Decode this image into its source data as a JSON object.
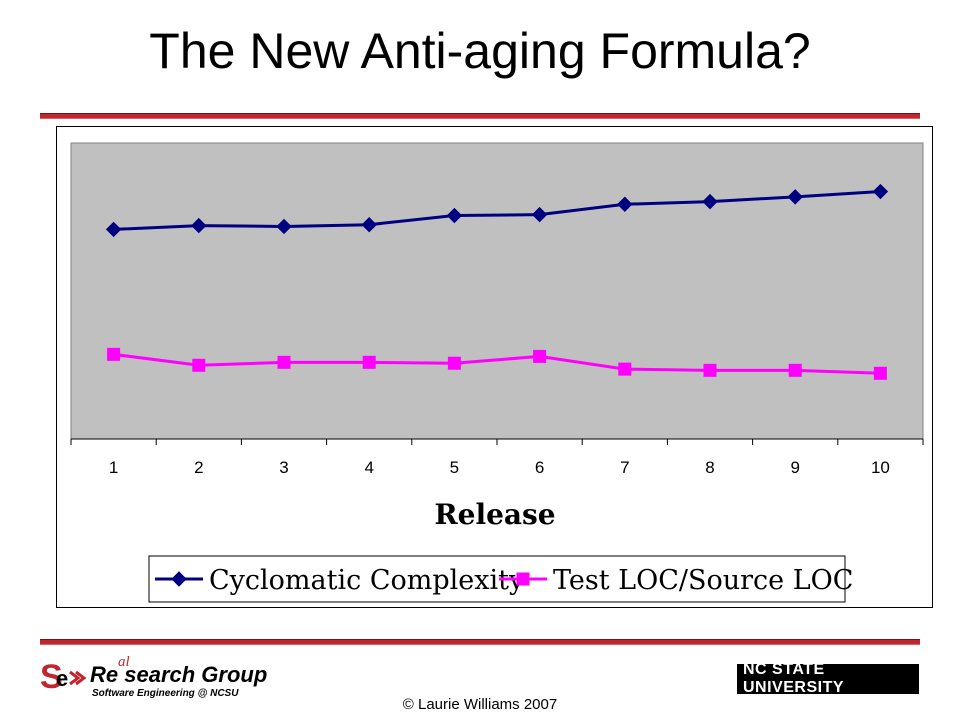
{
  "slide": {
    "title": "The New Anti-aging Formula?",
    "copyright": "© Laurie Williams 2007"
  },
  "logos": {
    "left_group": "Re search Group",
    "left_group_letters": "al",
    "left_sub": "Software Engineering @ NCSU",
    "right": "NC STATE UNIVERSITY"
  },
  "colors": {
    "rule": "#c0262d",
    "plot_bg": "#c0c0c0",
    "series_1": "#000080",
    "series_2": "#ff00ff"
  },
  "chart_data": {
    "type": "line",
    "title": "",
    "xlabel": "Release",
    "ylabel": "",
    "x": [
      1,
      2,
      3,
      4,
      5,
      6,
      7,
      8,
      9,
      10
    ],
    "ylim": [
      0,
      100
    ],
    "grid": false,
    "legend": "bottom",
    "series": [
      {
        "name": "Cyclomatic Complexity",
        "marker": "diamond",
        "values": [
          70.8,
          72.1,
          71.8,
          72.4,
          75.5,
          75.8,
          79.3,
          80.2,
          81.8,
          83.6
        ]
      },
      {
        "name": "Test LOC/Source LOC",
        "marker": "square",
        "values": [
          28.6,
          24.9,
          25.9,
          25.9,
          25.6,
          27.9,
          23.6,
          23.2,
          23.2,
          22.2
        ]
      }
    ]
  }
}
